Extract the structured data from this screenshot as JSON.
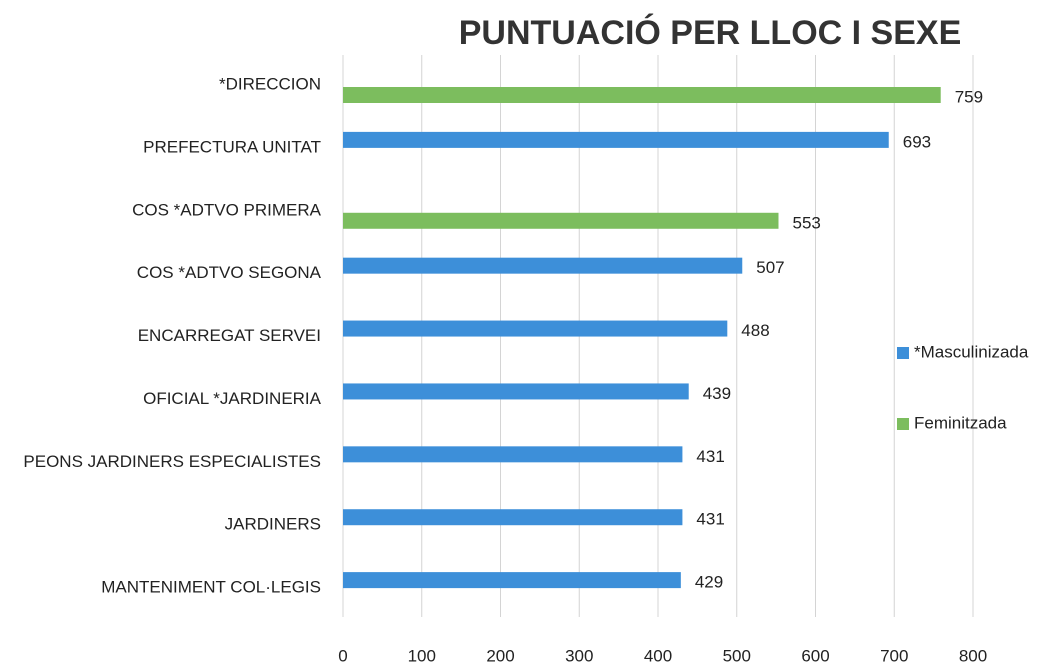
{
  "chart_data": {
    "type": "bar",
    "orientation": "horizontal",
    "title": "PUNTUACIÓ PER LLOC I SEXE",
    "categories": [
      "*DIRECCION",
      "PREFECTURA UNITAT",
      "COS *ADTVO PRIMERA",
      "COS *ADTVO SEGONA",
      "ENCARREGAT SERVEI",
      "OFICIAL *JARDINERIA",
      "PEONS JARDINERS ESPECIALISTES",
      "JARDINERS",
      "MANTENIMENT COL·LEGIS"
    ],
    "series": [
      {
        "name": "*Masculinizada",
        "color": "#3d8fd9",
        "values": [
          null,
          693,
          null,
          507,
          488,
          439,
          431,
          431,
          429
        ]
      },
      {
        "name": "Feminitzada",
        "color": "#7cbd5e",
        "values": [
          759,
          null,
          553,
          null,
          null,
          null,
          null,
          null,
          null
        ]
      }
    ],
    "xlim": [
      0,
      800
    ],
    "xticks": [
      0,
      100,
      200,
      300,
      400,
      500,
      600,
      700,
      800
    ],
    "grid": true,
    "legend": "right"
  }
}
